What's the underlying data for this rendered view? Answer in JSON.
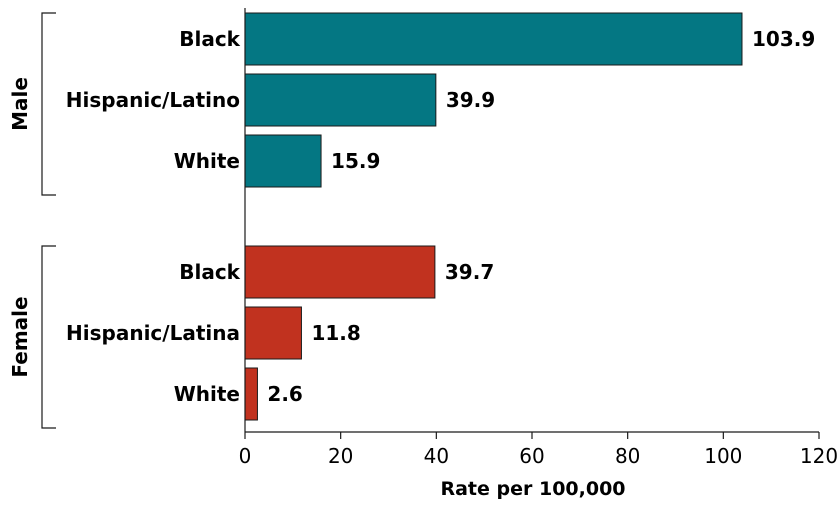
{
  "chart_data": {
    "type": "bar",
    "orientation": "horizontal",
    "xlabel": "Rate per 100,000",
    "xlim": [
      0,
      120
    ],
    "xticks": [
      0,
      20,
      40,
      60,
      80,
      100,
      120
    ],
    "grid": false,
    "groups": [
      {
        "name": "Male",
        "color": "#047783",
        "categories": [
          "Black",
          "Hispanic/Latino",
          "White"
        ],
        "values": [
          103.9,
          39.9,
          15.9
        ],
        "labels": [
          "103.9",
          "39.9",
          "15.9"
        ]
      },
      {
        "name": "Female",
        "color": "#c1321f",
        "categories": [
          "Black",
          "Hispanic/Latina",
          "White"
        ],
        "values": [
          39.7,
          11.8,
          2.6
        ],
        "labels": [
          "39.7",
          "11.8",
          "2.6"
        ]
      }
    ]
  }
}
